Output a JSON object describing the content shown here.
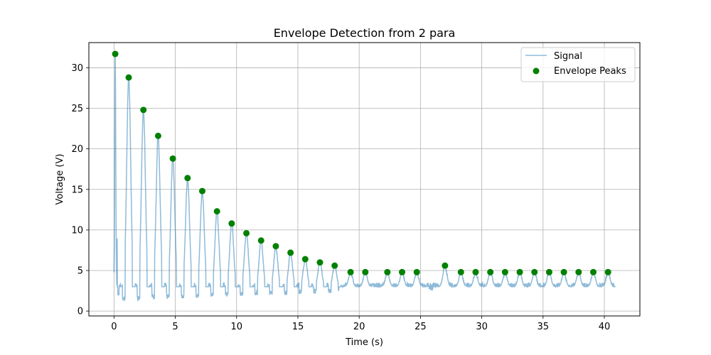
{
  "chart_data": {
    "type": "line",
    "title": "Envelope Detection from 2 para",
    "xlabel": "Time (s)",
    "ylabel": "Voltage (V)",
    "xlim": [
      -2.05,
      42.9
    ],
    "ylim": [
      -0.6,
      33.1
    ],
    "xticks": [
      0,
      5,
      10,
      15,
      20,
      25,
      30,
      35,
      40
    ],
    "yticks": [
      0,
      5,
      10,
      15,
      20,
      25,
      30
    ],
    "xtick_labels": [
      "0",
      "5",
      "10",
      "15",
      "20",
      "25",
      "30",
      "35",
      "40"
    ],
    "ytick_labels": [
      "0",
      "5",
      "10",
      "15",
      "20",
      "25",
      "30"
    ],
    "grid": true,
    "legend_position": "top-right",
    "series": [
      {
        "name": "Signal",
        "style": "line",
        "color": "#1f77b4",
        "alpha": 0.5,
        "baseline": 3.0,
        "x_range": [
          0,
          40.9
        ],
        "description_points": "oscillating decay, peaks coincide with envelope peaks"
      },
      {
        "name": "Envelope Peaks",
        "style": "marker",
        "color": "#008000",
        "x": [
          0.1,
          1.2,
          2.4,
          3.6,
          4.8,
          6.0,
          7.2,
          8.4,
          9.6,
          10.8,
          12.0,
          13.2,
          14.4,
          15.6,
          16.8,
          18.0,
          19.3,
          20.5,
          22.3,
          23.5,
          24.7,
          27.0,
          28.3,
          29.5,
          30.7,
          31.9,
          33.1,
          34.3,
          35.5,
          36.7,
          37.9,
          39.1,
          40.3
        ],
        "y": [
          31.7,
          28.8,
          24.8,
          21.6,
          18.8,
          16.4,
          14.8,
          12.3,
          10.8,
          9.6,
          8.7,
          8.0,
          7.2,
          6.4,
          6.0,
          5.6,
          4.8,
          4.8,
          4.8,
          4.8,
          4.8,
          5.6,
          4.8,
          4.8,
          4.8,
          4.8,
          4.8,
          4.8,
          4.8,
          4.8,
          4.8,
          4.8,
          4.8
        ]
      }
    ]
  },
  "colors": {
    "signal": "#1f77b4",
    "peaks": "#008000",
    "grid": "#b0b0b0",
    "axis": "#000000"
  }
}
